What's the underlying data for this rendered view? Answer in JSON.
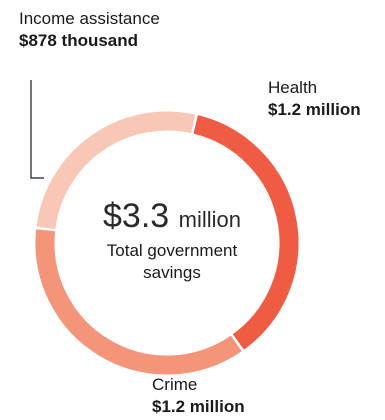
{
  "chart_data": {
    "type": "pie",
    "donut": true,
    "center": {
      "amount": "$3.3",
      "unit": "million",
      "caption": "Total government savings"
    },
    "slices": [
      {
        "name": "Health",
        "value": 1.2,
        "value_label": "$1.2 million",
        "color": "#ef5b43"
      },
      {
        "name": "Crime",
        "value": 1.2,
        "value_label": "$1.2 million",
        "color": "#f4957a"
      },
      {
        "name": "Income assistance",
        "value": 0.878,
        "value_label": "$878 thousand",
        "color": "#f9c7b5"
      }
    ]
  }
}
